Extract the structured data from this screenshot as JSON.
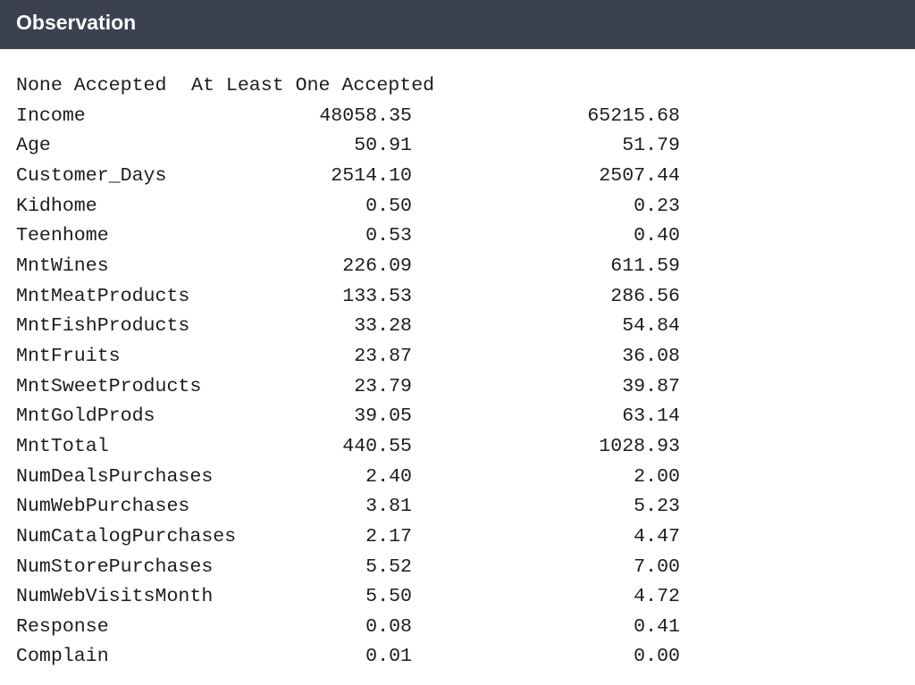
{
  "header": {
    "title": "Observation"
  },
  "table": {
    "columns": [
      "None Accepted",
      "At Least One Accepted"
    ],
    "rows": [
      {
        "label": "Income",
        "none": "48058.35",
        "at_least_one": "65215.68"
      },
      {
        "label": "Age",
        "none": "50.91",
        "at_least_one": "51.79"
      },
      {
        "label": "Customer_Days",
        "none": "2514.10",
        "at_least_one": "2507.44"
      },
      {
        "label": "Kidhome",
        "none": "0.50",
        "at_least_one": "0.23"
      },
      {
        "label": "Teenhome",
        "none": "0.53",
        "at_least_one": "0.40"
      },
      {
        "label": "MntWines",
        "none": "226.09",
        "at_least_one": "611.59"
      },
      {
        "label": "MntMeatProducts",
        "none": "133.53",
        "at_least_one": "286.56"
      },
      {
        "label": "MntFishProducts",
        "none": "33.28",
        "at_least_one": "54.84"
      },
      {
        "label": "MntFruits",
        "none": "23.87",
        "at_least_one": "36.08"
      },
      {
        "label": "MntSweetProducts",
        "none": "23.79",
        "at_least_one": "39.87"
      },
      {
        "label": "MntGoldProds",
        "none": "39.05",
        "at_least_one": "63.14"
      },
      {
        "label": "MntTotal",
        "none": "440.55",
        "at_least_one": "1028.93"
      },
      {
        "label": "NumDealsPurchases",
        "none": "2.40",
        "at_least_one": "2.00"
      },
      {
        "label": "NumWebPurchases",
        "none": "3.81",
        "at_least_one": "5.23"
      },
      {
        "label": "NumCatalogPurchases",
        "none": "2.17",
        "at_least_one": "4.47"
      },
      {
        "label": "NumStorePurchases",
        "none": "5.52",
        "at_least_one": "7.00"
      },
      {
        "label": "NumWebVisitsMonth",
        "none": "5.50",
        "at_least_one": "4.72"
      },
      {
        "label": "Response",
        "none": "0.08",
        "at_least_one": "0.41"
      },
      {
        "label": "Complain",
        "none": "0.01",
        "at_least_one": "0.00"
      }
    ]
  }
}
